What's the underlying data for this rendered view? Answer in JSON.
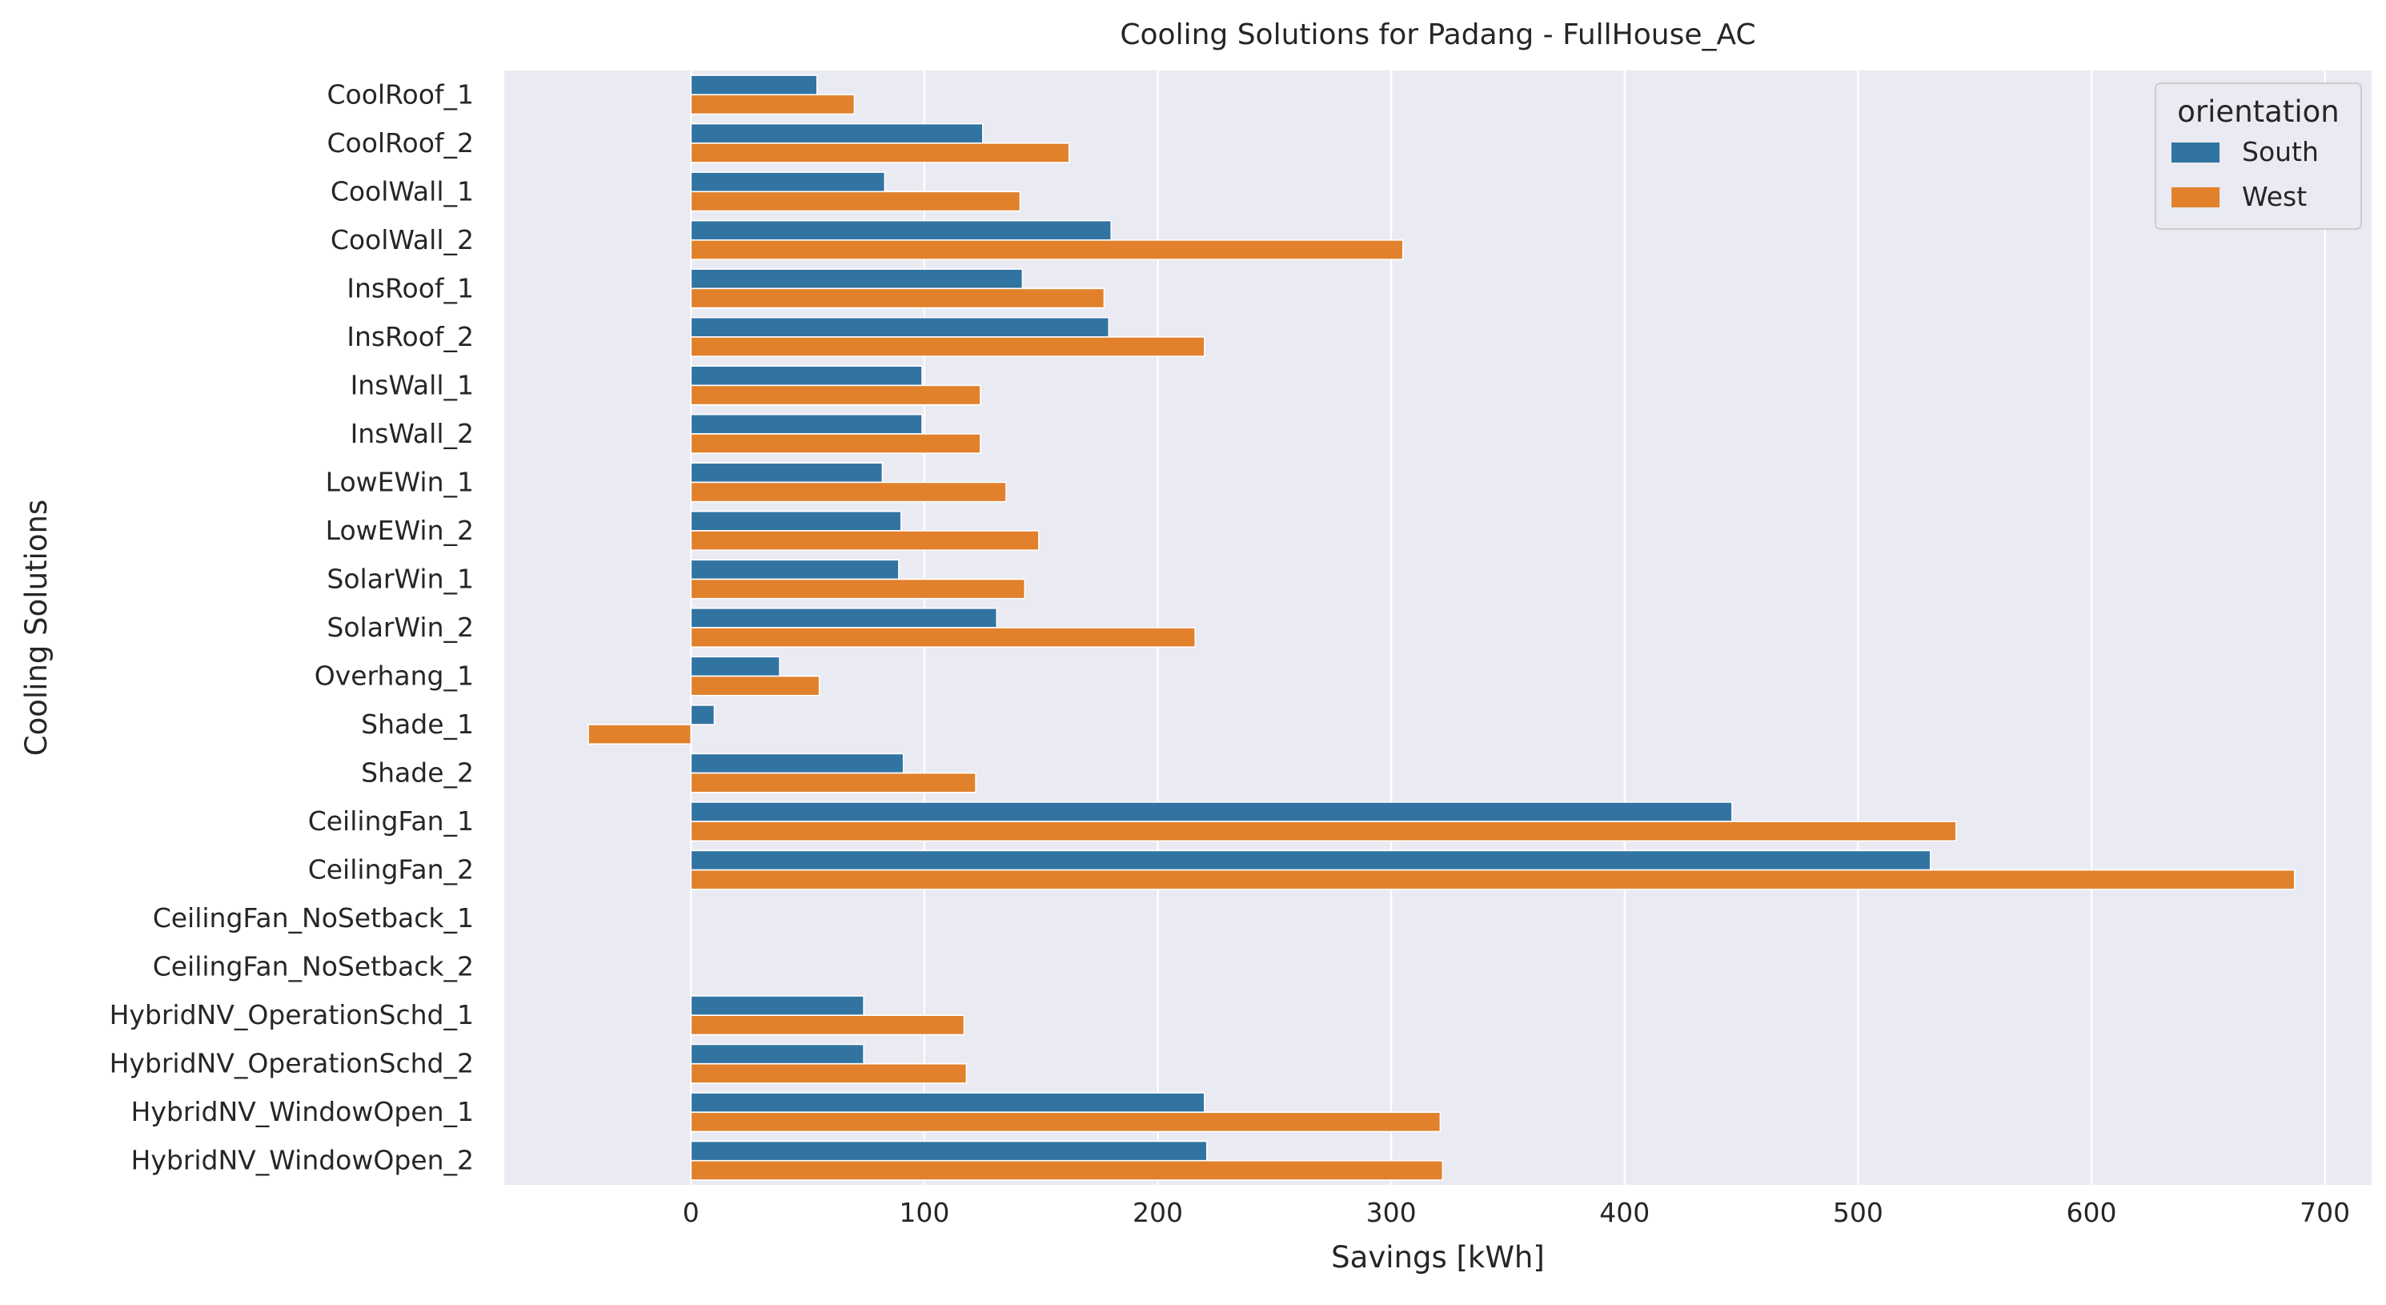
{
  "chart_data": {
    "type": "bar",
    "orientation": "horizontal",
    "title": "Cooling Solutions for Padang - FullHouse_AC",
    "xlabel": "Savings [kWh]",
    "ylabel": "Cooling Solutions",
    "xlim": [
      -80,
      720
    ],
    "xticks": [
      0,
      100,
      200,
      300,
      400,
      500,
      600,
      700
    ],
    "grid": true,
    "legend_title": "orientation",
    "legend_position": "top-right",
    "categories": [
      "CoolRoof_1",
      "CoolRoof_2",
      "CoolWall_1",
      "CoolWall_2",
      "InsRoof_1",
      "InsRoof_2",
      "InsWall_1",
      "InsWall_2",
      "LowEWin_1",
      "LowEWin_2",
      "SolarWin_1",
      "SolarWin_2",
      "Overhang_1",
      "Shade_1",
      "Shade_2",
      "CeilingFan_1",
      "CeilingFan_2",
      "CeilingFan_NoSetback_1",
      "CeilingFan_NoSetback_2",
      "HybridNV_OperationSchd_1",
      "HybridNV_OperationSchd_2",
      "HybridNV_WindowOpen_1",
      "HybridNV_WindowOpen_2"
    ],
    "series": [
      {
        "name": "South",
        "color": "#3274a1",
        "values": [
          54,
          125,
          83,
          180,
          142,
          179,
          99,
          99,
          82,
          90,
          89,
          131,
          38,
          10,
          91,
          446,
          531,
          null,
          null,
          74,
          74,
          220,
          221
        ]
      },
      {
        "name": "West",
        "color": "#e1812c",
        "values": [
          70,
          162,
          141,
          305,
          177,
          220,
          124,
          124,
          135,
          149,
          143,
          216,
          55,
          -44,
          122,
          542,
          687,
          null,
          null,
          117,
          118,
          321,
          322
        ]
      }
    ]
  },
  "style": {
    "background": "#eaeaf2",
    "grid_color": "#ffffff"
  }
}
